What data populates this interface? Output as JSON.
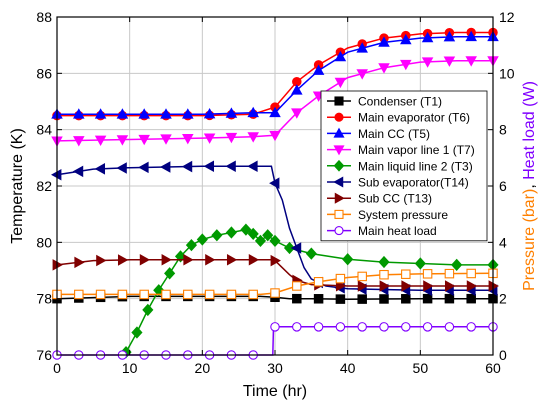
{
  "chart_data": {
    "type": "line",
    "xlabel": "Time (hr)",
    "ylabel": "Temperature (K)",
    "y2label_parts": [
      {
        "text": "Pressure (bar)",
        "color": "#ff8000"
      },
      {
        "text": ", ",
        "color": "#000000"
      },
      {
        "text": "Heat load (W)",
        "color": "#8000ff"
      }
    ],
    "xlim": [
      0,
      60
    ],
    "ylim": [
      76,
      88
    ],
    "y2lim": [
      0,
      12
    ],
    "xticks": [
      "0",
      "10",
      "20",
      "30",
      "40",
      "50",
      "60"
    ],
    "yticks": [
      "76",
      "78",
      "80",
      "82",
      "84",
      "86",
      "88"
    ],
    "y2ticks": [
      "0",
      "2",
      "4",
      "6",
      "8",
      "10",
      "12"
    ],
    "grid": true,
    "legend_position": "right",
    "series": [
      {
        "name": "Condenser (T1)",
        "color": "#000000",
        "marker": "square",
        "filled": true,
        "axis": "left",
        "points": [
          [
            0,
            78.0
          ],
          [
            10,
            78.08
          ],
          [
            20,
            78.08
          ],
          [
            28,
            78.08
          ],
          [
            30,
            78.05
          ],
          [
            32,
            78.0
          ],
          [
            35,
            78.0
          ],
          [
            40,
            77.98
          ],
          [
            50,
            78.0
          ],
          [
            60,
            78.0
          ]
        ]
      },
      {
        "name": "Main evaporator (T6)",
        "color": "#ff0000",
        "marker": "circle",
        "filled": true,
        "axis": "left",
        "points": [
          [
            0,
            84.5
          ],
          [
            10,
            84.5
          ],
          [
            20,
            84.5
          ],
          [
            27,
            84.55
          ],
          [
            30,
            84.8
          ],
          [
            33,
            85.7
          ],
          [
            36,
            86.3
          ],
          [
            40,
            86.9
          ],
          [
            45,
            87.25
          ],
          [
            50,
            87.4
          ],
          [
            55,
            87.45
          ],
          [
            60,
            87.45
          ]
        ]
      },
      {
        "name": "Main CC (T5)",
        "color": "#0000ff",
        "marker": "triangle-up",
        "filled": true,
        "axis": "left",
        "points": [
          [
            0,
            84.55
          ],
          [
            10,
            84.55
          ],
          [
            20,
            84.55
          ],
          [
            27,
            84.6
          ],
          [
            30,
            84.6
          ],
          [
            33,
            85.4
          ],
          [
            36,
            86.1
          ],
          [
            40,
            86.75
          ],
          [
            45,
            87.1
          ],
          [
            50,
            87.25
          ],
          [
            55,
            87.3
          ],
          [
            60,
            87.3
          ]
        ]
      },
      {
        "name": "Main vapor line 1 (T7)",
        "color": "#ff00ff",
        "marker": "triangle-down",
        "filled": true,
        "axis": "left",
        "points": [
          [
            0,
            83.6
          ],
          [
            10,
            83.65
          ],
          [
            20,
            83.7
          ],
          [
            27,
            83.75
          ],
          [
            30,
            83.8
          ],
          [
            33,
            84.6
          ],
          [
            36,
            85.2
          ],
          [
            40,
            85.85
          ],
          [
            45,
            86.2
          ],
          [
            50,
            86.4
          ],
          [
            55,
            86.45
          ],
          [
            60,
            86.45
          ]
        ]
      },
      {
        "name": "Main liquid line 2 (T3)",
        "color": "#009900",
        "marker": "diamond",
        "filled": true,
        "axis": "left",
        "points": [
          [
            9.5,
            76.1
          ],
          [
            11,
            76.8
          ],
          [
            12.5,
            77.6
          ],
          [
            14,
            78.3
          ],
          [
            15.5,
            78.9
          ],
          [
            17,
            79.5
          ],
          [
            18.5,
            79.9
          ],
          [
            20,
            80.1
          ],
          [
            22,
            80.25
          ],
          [
            24,
            80.35
          ],
          [
            26,
            80.45
          ],
          [
            27,
            80.3
          ],
          [
            28,
            80.05
          ],
          [
            29,
            80.25
          ],
          [
            30,
            80.05
          ],
          [
            32,
            79.8
          ],
          [
            35,
            79.6
          ],
          [
            40,
            79.4
          ],
          [
            45,
            79.3
          ],
          [
            50,
            79.25
          ],
          [
            55,
            79.2
          ],
          [
            60,
            79.2
          ]
        ]
      },
      {
        "name": "Sub evaporator(T14)",
        "color": "#000080",
        "marker": "triangle-left",
        "filled": true,
        "axis": "left",
        "points": [
          [
            0,
            82.4
          ],
          [
            5,
            82.6
          ],
          [
            10,
            82.65
          ],
          [
            20,
            82.7
          ],
          [
            29.5,
            82.7
          ],
          [
            30,
            82.1
          ],
          [
            31,
            81.5
          ],
          [
            32,
            80.5
          ],
          [
            33,
            79.8
          ],
          [
            34,
            79.1
          ],
          [
            35,
            78.7
          ],
          [
            37,
            78.45
          ],
          [
            40,
            78.35
          ],
          [
            50,
            78.3
          ],
          [
            60,
            78.3
          ]
        ]
      },
      {
        "name": "Sub CC (T13)",
        "color": "#800000",
        "marker": "triangle-right",
        "filled": true,
        "axis": "left",
        "points": [
          [
            0,
            79.2
          ],
          [
            5,
            79.35
          ],
          [
            10,
            79.38
          ],
          [
            20,
            79.38
          ],
          [
            29.5,
            79.38
          ],
          [
            30,
            79.35
          ],
          [
            31,
            79.1
          ],
          [
            32,
            78.85
          ],
          [
            33,
            78.65
          ],
          [
            35,
            78.5
          ],
          [
            40,
            78.45
          ],
          [
            50,
            78.45
          ],
          [
            60,
            78.45
          ]
        ]
      },
      {
        "name": "System pressure",
        "color": "#ff8000",
        "marker": "square",
        "filled": false,
        "axis": "right",
        "points": [
          [
            0,
            2.15
          ],
          [
            10,
            2.15
          ],
          [
            20,
            2.15
          ],
          [
            28,
            2.15
          ],
          [
            30,
            2.2
          ],
          [
            33,
            2.45
          ],
          [
            36,
            2.6
          ],
          [
            40,
            2.75
          ],
          [
            45,
            2.85
          ],
          [
            50,
            2.88
          ],
          [
            60,
            2.9
          ]
        ]
      },
      {
        "name": "Main heat load",
        "color": "#8000ff",
        "marker": "circle",
        "filled": false,
        "axis": "right",
        "points": [
          [
            0,
            0
          ],
          [
            29.7,
            0
          ],
          [
            29.8,
            1.0
          ],
          [
            60,
            1.0
          ]
        ]
      }
    ]
  }
}
